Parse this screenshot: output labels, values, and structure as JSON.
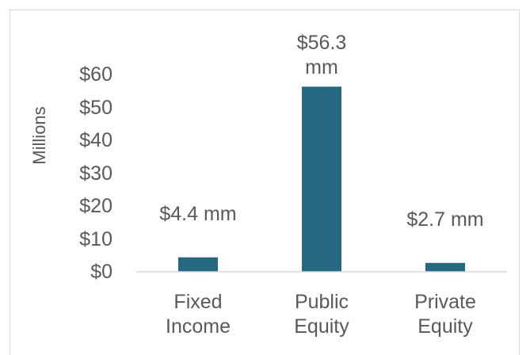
{
  "chart_data": {
    "type": "bar",
    "y_axis_label": "Millions",
    "categories": [
      "Fixed Income",
      "Public Equity",
      "Private Equity"
    ],
    "values": [
      4.4,
      56.3,
      2.7
    ],
    "value_labels": [
      "$4.4 mm",
      "$56.3 mm",
      "$2.7 mm"
    ],
    "color": "#266882",
    "ylim": [
      0,
      60
    ],
    "yticks": [
      {
        "value": 0,
        "label": "$0"
      },
      {
        "value": 10,
        "label": "$10"
      },
      {
        "value": 20,
        "label": "$20"
      },
      {
        "value": 30,
        "label": "$30"
      },
      {
        "value": 40,
        "label": "$40"
      },
      {
        "value": 50,
        "label": "$50"
      },
      {
        "value": 60,
        "label": "$60"
      }
    ],
    "grid": false
  }
}
